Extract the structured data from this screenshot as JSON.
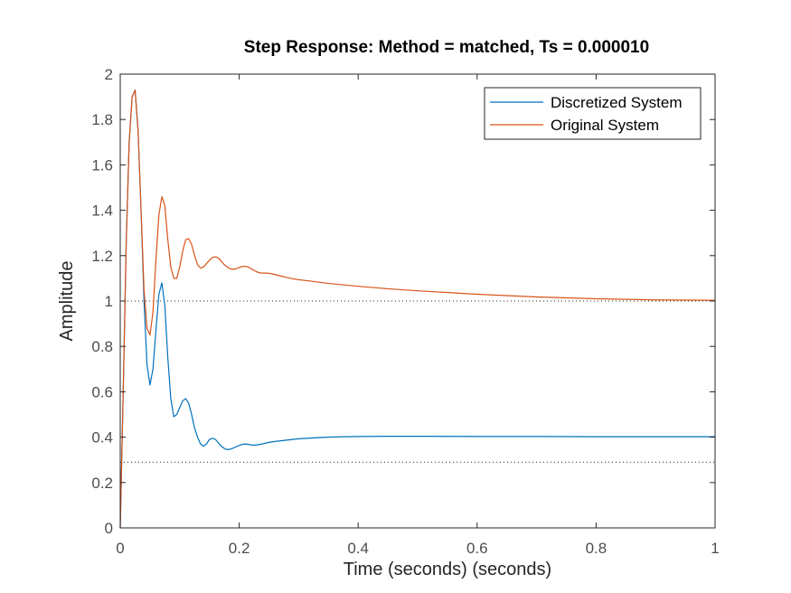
{
  "colors": {
    "discretized": "#0072bd",
    "original": "#d95319",
    "axes": "#262626",
    "tick_text": "#4d4d4d",
    "reference": "#262626"
  },
  "chart_data": {
    "type": "line",
    "title": "Step Response: Method = matched, Ts = 0.000010",
    "xlabel": "Time (seconds) (seconds)",
    "ylabel": "Amplitude",
    "xlim": [
      0,
      1
    ],
    "ylim": [
      0,
      2
    ],
    "xticks": [
      "0",
      "0.2",
      "0.4",
      "0.6",
      "0.8",
      "1"
    ],
    "yticks": [
      "0",
      "0.2",
      "0.4",
      "0.6",
      "0.8",
      "1",
      "1.2",
      "1.4",
      "1.6",
      "1.8",
      "2"
    ],
    "grid": false,
    "legend_position": "top-right",
    "series": [
      {
        "name": "Discretized System",
        "x": [
          0,
          0.005,
          0.01,
          0.015,
          0.02,
          0.025,
          0.03,
          0.035,
          0.04,
          0.045,
          0.05,
          0.055,
          0.06,
          0.065,
          0.07,
          0.075,
          0.08,
          0.085,
          0.09,
          0.095,
          0.1,
          0.105,
          0.11,
          0.115,
          0.12,
          0.125,
          0.13,
          0.135,
          0.14,
          0.145,
          0.15,
          0.155,
          0.16,
          0.165,
          0.17,
          0.175,
          0.18,
          0.185,
          0.19,
          0.195,
          0.2,
          0.205,
          0.21,
          0.215,
          0.22,
          0.225,
          0.23,
          0.235,
          0.24,
          0.245,
          0.25,
          0.26,
          0.27,
          0.28,
          0.29,
          0.3,
          0.32,
          0.34,
          0.36,
          0.38,
          0.4,
          0.45,
          0.5,
          0.6,
          0.7,
          0.8,
          0.9,
          1.0
        ],
        "y": [
          0,
          0.6,
          1.25,
          1.7,
          1.9,
          1.93,
          1.75,
          1.4,
          1.0,
          0.72,
          0.63,
          0.7,
          0.87,
          1.03,
          1.08,
          0.98,
          0.75,
          0.57,
          0.49,
          0.5,
          0.53,
          0.56,
          0.57,
          0.55,
          0.5,
          0.44,
          0.4,
          0.37,
          0.36,
          0.37,
          0.39,
          0.395,
          0.39,
          0.375,
          0.36,
          0.35,
          0.345,
          0.347,
          0.352,
          0.358,
          0.363,
          0.368,
          0.37,
          0.368,
          0.366,
          0.365,
          0.366,
          0.368,
          0.371,
          0.374,
          0.377,
          0.381,
          0.384,
          0.387,
          0.39,
          0.393,
          0.396,
          0.399,
          0.401,
          0.402,
          0.403,
          0.404,
          0.404,
          0.403,
          0.403,
          0.402,
          0.402,
          0.402
        ]
      },
      {
        "name": "Original System",
        "x": [
          0,
          0.005,
          0.01,
          0.015,
          0.02,
          0.025,
          0.03,
          0.035,
          0.04,
          0.045,
          0.05,
          0.055,
          0.06,
          0.065,
          0.07,
          0.075,
          0.08,
          0.085,
          0.09,
          0.095,
          0.1,
          0.105,
          0.11,
          0.115,
          0.12,
          0.125,
          0.13,
          0.135,
          0.14,
          0.145,
          0.15,
          0.155,
          0.16,
          0.165,
          0.17,
          0.175,
          0.18,
          0.185,
          0.19,
          0.195,
          0.2,
          0.205,
          0.21,
          0.215,
          0.22,
          0.225,
          0.23,
          0.235,
          0.24,
          0.245,
          0.25,
          0.26,
          0.27,
          0.28,
          0.29,
          0.3,
          0.32,
          0.34,
          0.36,
          0.38,
          0.4,
          0.45,
          0.5,
          0.6,
          0.7,
          0.8,
          0.9,
          1.0
        ],
        "y": [
          0,
          0.6,
          1.25,
          1.7,
          1.9,
          1.93,
          1.75,
          1.4,
          1.05,
          0.88,
          0.85,
          0.95,
          1.18,
          1.38,
          1.46,
          1.42,
          1.27,
          1.15,
          1.1,
          1.1,
          1.15,
          1.22,
          1.27,
          1.275,
          1.25,
          1.2,
          1.16,
          1.145,
          1.15,
          1.165,
          1.18,
          1.192,
          1.195,
          1.19,
          1.175,
          1.16,
          1.15,
          1.142,
          1.14,
          1.142,
          1.148,
          1.152,
          1.153,
          1.15,
          1.143,
          1.135,
          1.128,
          1.124,
          1.123,
          1.123,
          1.122,
          1.117,
          1.11,
          1.104,
          1.098,
          1.094,
          1.088,
          1.081,
          1.075,
          1.07,
          1.065,
          1.054,
          1.045,
          1.03,
          1.018,
          1.01,
          1.005,
          1.003
        ]
      }
    ],
    "reference_lines": [
      1,
      0.29
    ]
  }
}
